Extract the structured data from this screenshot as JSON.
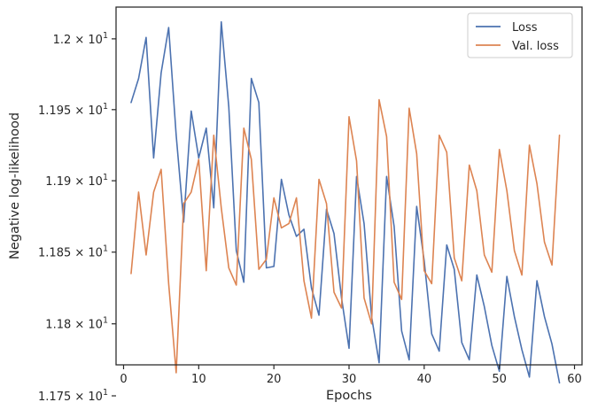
{
  "chart_data": {
    "type": "line",
    "xlabel": "Epochs",
    "ylabel": "Negative log-likelihood",
    "xlim": [
      -1,
      61
    ],
    "ylim": [
      11.7715,
      12.0225
    ],
    "yscale": "log",
    "grid": false,
    "legend_position": "top-right",
    "x_ticks": [
      0,
      10,
      20,
      30,
      40,
      50,
      60
    ],
    "y_ticks": [
      {
        "value": 11.75,
        "mantissa": "1.175",
        "base": "10",
        "exp": "1"
      },
      {
        "value": 11.8,
        "mantissa": "1.18",
        "base": "10",
        "exp": "1"
      },
      {
        "value": 11.85,
        "mantissa": "1.185",
        "base": "10",
        "exp": "1"
      },
      {
        "value": 11.9,
        "mantissa": "1.19",
        "base": "10",
        "exp": "1"
      },
      {
        "value": 11.95,
        "mantissa": "1.195",
        "base": "10",
        "exp": "1"
      },
      {
        "value": 12.0,
        "mantissa": "1.2",
        "base": "10",
        "exp": "1"
      }
    ],
    "x": [
      1,
      2,
      3,
      4,
      5,
      6,
      7,
      8,
      9,
      10,
      11,
      12,
      13,
      14,
      15,
      16,
      17,
      18,
      19,
      20,
      21,
      22,
      23,
      24,
      25,
      26,
      27,
      28,
      29,
      30,
      31,
      32,
      33,
      34,
      35,
      36,
      37,
      38,
      39,
      40,
      41,
      42,
      43,
      44,
      45,
      46,
      47,
      48,
      49,
      50,
      51,
      52,
      53,
      54,
      55,
      56,
      57,
      58
    ],
    "series": [
      {
        "name": "Loss",
        "color": "#4c72b0",
        "values": [
          11.955,
          11.972,
          12.001,
          11.916,
          11.976,
          12.008,
          11.932,
          11.871,
          11.949,
          11.916,
          11.937,
          11.881,
          12.012,
          11.952,
          11.851,
          11.829,
          11.972,
          11.955,
          11.839,
          11.84,
          11.901,
          11.876,
          11.861,
          11.866,
          11.825,
          11.806,
          11.88,
          11.863,
          11.818,
          11.783,
          11.903,
          11.87,
          11.805,
          11.773,
          11.903,
          11.868,
          11.795,
          11.775,
          11.882,
          11.844,
          11.793,
          11.781,
          11.855,
          11.838,
          11.787,
          11.775,
          11.834,
          11.812,
          11.785,
          11.767,
          11.833,
          11.805,
          11.782,
          11.763,
          11.83,
          11.805,
          11.786,
          11.759
        ]
      },
      {
        "name": "Val. loss",
        "color": "#dd8452",
        "values": [
          11.835,
          11.892,
          11.848,
          11.892,
          11.908,
          11.828,
          11.766,
          11.884,
          11.892,
          11.915,
          11.837,
          11.932,
          11.881,
          11.839,
          11.827,
          11.937,
          11.915,
          11.838,
          11.845,
          11.888,
          11.867,
          11.87,
          11.888,
          11.83,
          11.804,
          11.901,
          11.884,
          11.822,
          11.811,
          11.945,
          11.914,
          11.818,
          11.8,
          11.957,
          11.931,
          11.829,
          11.817,
          11.951,
          11.919,
          11.837,
          11.828,
          11.932,
          11.92,
          11.846,
          11.83,
          11.911,
          11.893,
          11.848,
          11.836,
          11.922,
          11.893,
          11.851,
          11.834,
          11.925,
          11.898,
          11.857,
          11.841,
          11.932
        ]
      }
    ]
  }
}
